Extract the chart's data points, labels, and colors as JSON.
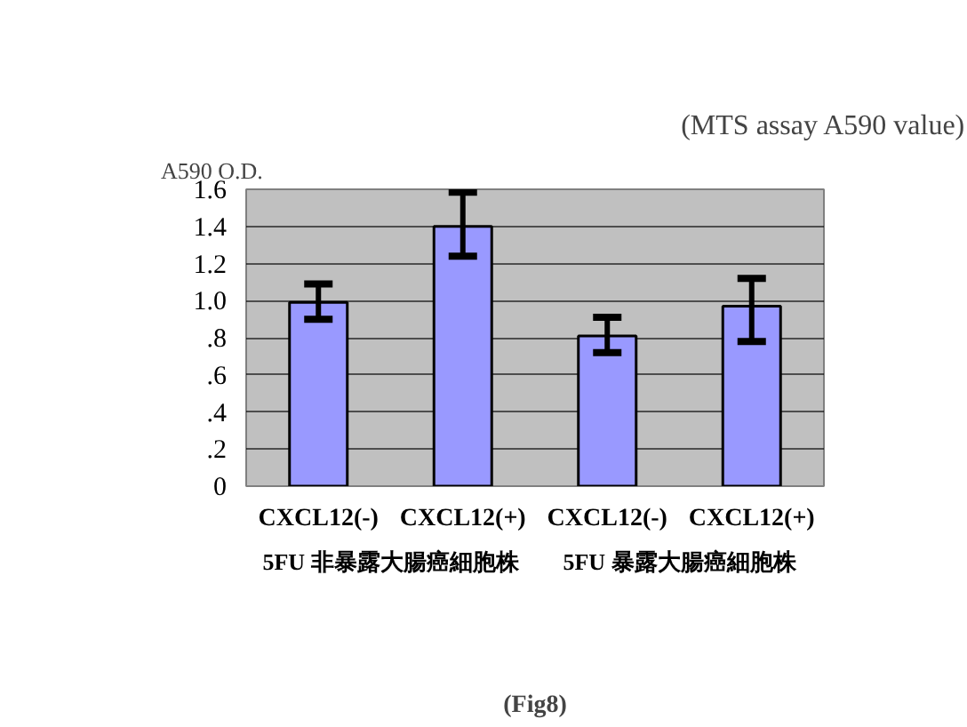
{
  "chart_data": {
    "type": "bar",
    "title": "(MTS assay A590 value)",
    "ylabel": "A590 O.D.",
    "categories": [
      "CXCL12(-)",
      "CXCL12(+)",
      "CXCL12(-)",
      "CXCL12(+)"
    ],
    "values": [
      0.99,
      1.4,
      0.81,
      0.97
    ],
    "errors": [
      [
        0.9,
        1.09
      ],
      [
        1.24,
        1.585
      ],
      [
        0.72,
        0.91
      ],
      [
        0.78,
        1.12
      ]
    ],
    "color": "#9999ff",
    "ylim": [
      0,
      1.6
    ],
    "yticks": [
      0,
      {
        "value": 0.2,
        "label": ".2"
      },
      {
        "value": 0.4,
        "label": ".4"
      },
      {
        "value": 0.6,
        "label": ".6"
      },
      {
        "value": 0.8,
        "label": ".8"
      },
      {
        "value": 1.0,
        "label": "1.0"
      },
      {
        "value": 1.2,
        "label": "1.2"
      },
      {
        "value": 1.4,
        "label": "1.4"
      },
      {
        "value": 1.6,
        "label": "1.6"
      }
    ],
    "grid": "y",
    "annotations": [
      "5FU 非暴露大腸癌細胞株",
      "5FU 暴露大腸癌細胞株",
      "(Fig8)"
    ]
  }
}
